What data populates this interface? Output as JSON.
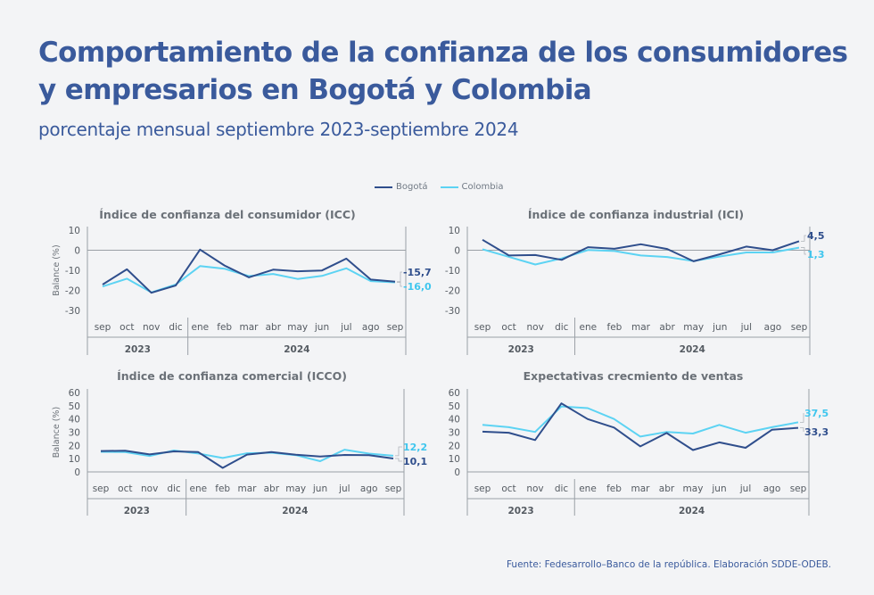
{
  "title": "Comportamiento de la confianza de los consumidores y empresarios en Bogotá y Colombia",
  "subtitle": "porcentaje mensual septiembre 2023-septiembre 2024",
  "legend": [
    {
      "name": "Bogotá",
      "color": "#2f4e8c"
    },
    {
      "name": "Colombia",
      "color": "#5cd3f3"
    }
  ],
  "source": "Fuente: Fedesarrollo–Banco de la república. Elaboración SDDE-ODEB.",
  "chart_data": [
    {
      "type": "line",
      "title": "Índice de confianza del consumidor (ICC)",
      "ylabel": "Balance (%)",
      "categories": [
        "sep",
        "oct",
        "nov",
        "dic",
        "ene",
        "feb",
        "mar",
        "abr",
        "may",
        "jun",
        "jul",
        "ago",
        "sep"
      ],
      "years": [
        "2023",
        "2024"
      ],
      "ylim": [
        -30,
        10
      ],
      "yticks": [
        10,
        0,
        -10,
        -20,
        -30
      ],
      "series": [
        {
          "name": "Bogotá",
          "values": [
            -17.1,
            -9.5,
            -21.2,
            -17.6,
            0.3,
            -7.6,
            -13.5,
            -9.7,
            -10.5,
            -10.1,
            -4.2,
            -14.6,
            -15.7
          ]
        },
        {
          "name": "Colombia",
          "values": [
            -18.1,
            -14.2,
            -21.0,
            -17.1,
            -7.9,
            -9.2,
            -12.9,
            -11.8,
            -14.3,
            -12.8,
            -9.0,
            -15.4,
            -16.0
          ]
        }
      ],
      "end_labels": [
        "-15,7",
        "-16,0"
      ]
    },
    {
      "type": "line",
      "title": "Índice de confianza industrial (ICI)",
      "ylabel": "",
      "categories": [
        "sep",
        "oct",
        "nov",
        "dic",
        "ene",
        "feb",
        "mar",
        "abr",
        "may",
        "jun",
        "jul",
        "ago",
        "sep"
      ],
      "years": [
        "2023",
        "2024"
      ],
      "ylim": [
        -30,
        10
      ],
      "yticks": [
        10,
        0,
        -10,
        -20,
        -30
      ],
      "series": [
        {
          "name": "Bogotá",
          "values": [
            5.2,
            -2.6,
            -2.4,
            -4.8,
            1.5,
            0.7,
            3.0,
            0.6,
            -5.5,
            -2.0,
            1.8,
            0.0,
            4.5
          ]
        },
        {
          "name": "Colombia",
          "values": [
            0.5,
            -3.3,
            -7.1,
            -4.1,
            0.1,
            -0.4,
            -2.6,
            -3.4,
            -5.4,
            -3.1,
            -1.1,
            -1.1,
            1.3
          ]
        }
      ],
      "end_labels": [
        "4,5",
        "1,3"
      ]
    },
    {
      "type": "line",
      "title": "Índice de confianza comercial (ICCO)",
      "ylabel": "Balance (%)",
      "categories": [
        "sep",
        "oct",
        "nov",
        "dic",
        "ene",
        "feb",
        "mar",
        "abr",
        "may",
        "jun",
        "jul",
        "ago",
        "sep"
      ],
      "years": [
        "2023",
        "2024"
      ],
      "ylim": [
        0,
        60
      ],
      "yticks": [
        60,
        50,
        40,
        30,
        20,
        10,
        0
      ],
      "series": [
        {
          "name": "Bogotá",
          "values": [
            15.8,
            16.0,
            13.2,
            15.5,
            15.0,
            3.0,
            13.1,
            15.0,
            13.0,
            11.6,
            12.8,
            12.7,
            10.1
          ]
        },
        {
          "name": "Colombia",
          "values": [
            15.2,
            15.0,
            12.1,
            16.2,
            13.9,
            10.5,
            14.1,
            14.5,
            12.7,
            8.1,
            16.8,
            13.8,
            12.2
          ]
        }
      ],
      "end_labels": [
        "10,1",
        "12,2"
      ]
    },
    {
      "type": "line",
      "title": "Expectativas crecmiento de ventas",
      "ylabel": "",
      "categories": [
        "sep",
        "oct",
        "nov",
        "dic",
        "ene",
        "feb",
        "mar",
        "abr",
        "may",
        "jun",
        "jul",
        "ago",
        "sep"
      ],
      "years": [
        "2023",
        "2024"
      ],
      "ylim": [
        0,
        60
      ],
      "yticks": [
        60,
        50,
        40,
        30,
        20,
        10,
        0
      ],
      "series": [
        {
          "name": "Bogotá",
          "values": [
            30.4,
            29.6,
            24.1,
            51.8,
            39.9,
            33.5,
            19.3,
            29.4,
            16.5,
            22.3,
            18.2,
            31.8,
            33.3
          ]
        },
        {
          "name": "Colombia",
          "values": [
            35.5,
            33.8,
            30.2,
            49.5,
            48.2,
            40.0,
            26.7,
            30.2,
            29.0,
            35.5,
            29.6,
            33.8,
            37.5
          ]
        }
      ],
      "end_labels": [
        "33,3",
        "37,5"
      ]
    }
  ]
}
